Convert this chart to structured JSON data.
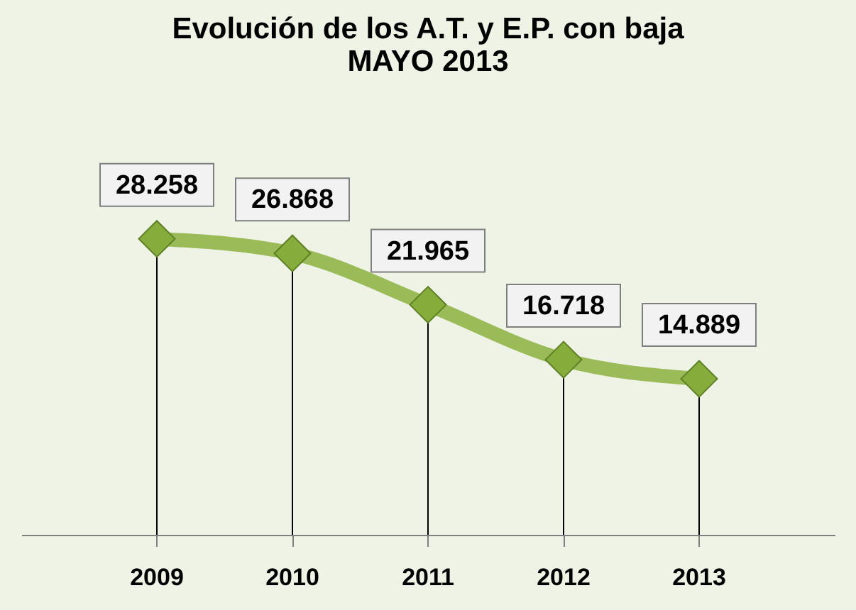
{
  "chart_data": {
    "type": "line",
    "title": "Evolución de los  A.T. y E.P. con baja\nMAYO 2013",
    "categories": [
      "2009",
      "2010",
      "2011",
      "2012",
      "2013"
    ],
    "series": [
      {
        "color": "#9bbb59",
        "values": [
          28258,
          26868,
          21965,
          16718,
          14889
        ],
        "value_labels": [
          "28.258",
          "26.868",
          "21.965",
          "16.718",
          "14.889"
        ]
      }
    ],
    "marker": "diamond",
    "grid": "x",
    "tick_labels": "x"
  }
}
